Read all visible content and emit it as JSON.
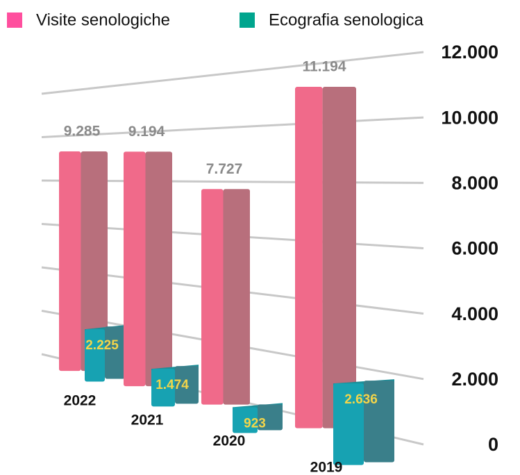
{
  "chart_data": {
    "type": "bar3d",
    "categories": [
      "2022",
      "2021",
      "2020",
      "2019"
    ],
    "series": [
      {
        "name": "Visite senologiche",
        "color": "#f06a8a",
        "values": [
          9285,
          9194,
          7727,
          11194
        ],
        "value_labels": [
          "9.285",
          "9.194",
          "7.727",
          "11.194"
        ]
      },
      {
        "name": "Ecografia senologica",
        "color": "#17a2b2",
        "values": [
          2225,
          1474,
          923,
          2636
        ],
        "value_labels": [
          "2.225",
          "1.474",
          "923",
          "2.636"
        ]
      }
    ],
    "ylim": [
      0,
      12000
    ],
    "yticks": [
      0,
      {
        "value": 2000,
        "label": "2.000"
      },
      {
        "value": 4000,
        "label": "4.000"
      },
      {
        "value": 6000,
        "label": "6.000"
      },
      {
        "value": 8000,
        "label": "8.000"
      },
      {
        "value": 10000,
        "label": "10.000"
      },
      {
        "value": 12000,
        "label": "12.000"
      }
    ],
    "grid": true
  }
}
